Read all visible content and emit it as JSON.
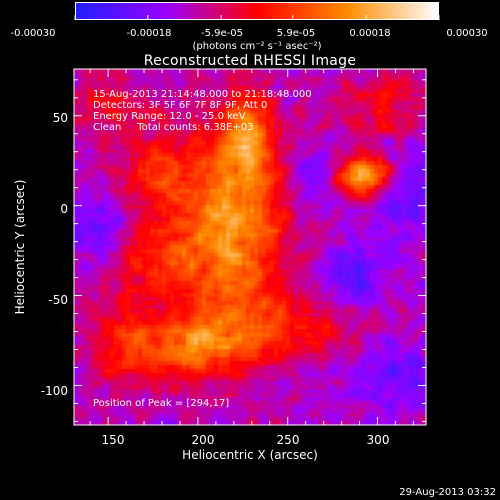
{
  "chart_data": {
    "type": "heatmap",
    "title": "Reconstructed RHESSI Image",
    "xlabel": "Heliocentric X (arcsec)",
    "ylabel": "Heliocentric Y (arcsec)",
    "xlim": [
      131,
      327
    ],
    "ylim": [
      -122,
      76
    ],
    "x_ticks": [
      150,
      200,
      250,
      300
    ],
    "y_ticks": [
      50,
      0,
      -50,
      -100
    ],
    "colorbar": {
      "colors": [
        "#2020ff",
        "#9a00ff",
        "#ff0000",
        "#ff8c00",
        "#ffffff"
      ],
      "range": [
        -0.0003,
        0.0003
      ],
      "tick_labels": [
        "-0.00030",
        "-0.00018",
        "-5.9e-05",
        "5.9e-05",
        "0.00018",
        "0.00030"
      ],
      "tick_values": [
        -0.0003,
        -0.00018,
        -5.9e-05,
        5.9e-05,
        0.00018,
        0.0003
      ],
      "units": "(photons cm⁻² s⁻¹ asec⁻²)"
    },
    "info_lines": [
      "15-Aug-2013 21:14:48.000 to 21:18:48.000",
      "Detectors: 3F 5F 6F 7F 8F 9F, Att 0",
      "Energy Range: 12.0 - 25.0 keV",
      "Clean     Total counts: 6.38E+03"
    ],
    "peak_label": "Position of Peak = [294,17]",
    "peak_position": [
      294,
      17
    ],
    "blobs": [
      {
        "x": 215,
        "y": -15,
        "sx": 24,
        "sy": 38,
        "amp": 0.00028
      },
      {
        "x": 228,
        "y": 38,
        "sx": 10,
        "sy": 18,
        "amp": 0.00022
      },
      {
        "x": 294,
        "y": 17,
        "sx": 12,
        "sy": 8,
        "amp": 0.0003
      },
      {
        "x": 198,
        "y": -80,
        "sx": 22,
        "sy": 12,
        "amp": 0.0002
      },
      {
        "x": 160,
        "y": -75,
        "sx": 14,
        "sy": 20,
        "amp": 0.00013
      },
      {
        "x": 250,
        "y": -68,
        "sx": 30,
        "sy": 12,
        "amp": 0.00012
      },
      {
        "x": 150,
        "y": 55,
        "sx": 14,
        "sy": 12,
        "amp": 0.00012
      },
      {
        "x": 175,
        "y": 20,
        "sx": 12,
        "sy": 15,
        "amp": 0.00012
      },
      {
        "x": 305,
        "y": 55,
        "sx": 18,
        "sy": 14,
        "amp": 0.00011
      },
      {
        "x": 170,
        "y": -30,
        "sx": 14,
        "sy": 12,
        "amp": 9e-05
      },
      {
        "x": 285,
        "y": -40,
        "sx": 10,
        "sy": 12,
        "amp": -0.00012
      },
      {
        "x": 315,
        "y": 10,
        "sx": 12,
        "sy": 15,
        "amp": -0.00013
      },
      {
        "x": 265,
        "y": 15,
        "sx": 10,
        "sy": 12,
        "amp": -9e-05
      },
      {
        "x": 310,
        "y": -95,
        "sx": 14,
        "sy": 14,
        "amp": -9e-05
      },
      {
        "x": 145,
        "y": -15,
        "sx": 10,
        "sy": 12,
        "amp": -8e-05
      }
    ]
  },
  "footer_timestamp": "29-Aug-2013 03:32"
}
